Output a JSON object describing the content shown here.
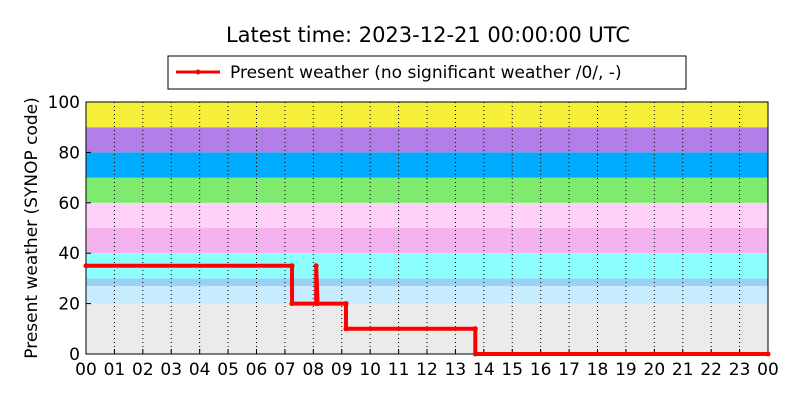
{
  "chart_data": {
    "type": "line",
    "title": "Latest time: 2023-12-21 00:00:00 UTC",
    "ylabel": "Present weather (SYNOP code)",
    "xlim": [
      0,
      24
    ],
    "ylim": [
      0,
      100
    ],
    "xticks": [
      {
        "value": 0,
        "label": "00"
      },
      {
        "value": 1,
        "label": "01"
      },
      {
        "value": 2,
        "label": "02"
      },
      {
        "value": 3,
        "label": "03"
      },
      {
        "value": 4,
        "label": "04"
      },
      {
        "value": 5,
        "label": "05"
      },
      {
        "value": 6,
        "label": "06"
      },
      {
        "value": 7,
        "label": "07"
      },
      {
        "value": 8,
        "label": "08"
      },
      {
        "value": 9,
        "label": "09"
      },
      {
        "value": 10,
        "label": "10"
      },
      {
        "value": 11,
        "label": "11"
      },
      {
        "value": 12,
        "label": "12"
      },
      {
        "value": 13,
        "label": "13"
      },
      {
        "value": 14,
        "label": "14"
      },
      {
        "value": 15,
        "label": "15"
      },
      {
        "value": 16,
        "label": "16"
      },
      {
        "value": 17,
        "label": "17"
      },
      {
        "value": 18,
        "label": "18"
      },
      {
        "value": 19,
        "label": "19"
      },
      {
        "value": 20,
        "label": "20"
      },
      {
        "value": 21,
        "label": "21"
      },
      {
        "value": 22,
        "label": "22"
      },
      {
        "value": 23,
        "label": "23"
      },
      {
        "value": 24,
        "label": "00"
      }
    ],
    "yticks": [
      0,
      20,
      40,
      60,
      80,
      100
    ],
    "grid": true,
    "legend": "top",
    "bands": [
      {
        "from": 0,
        "to": 20,
        "color": "#ebebeb"
      },
      {
        "from": 20,
        "to": 27,
        "color": "#c8ecff"
      },
      {
        "from": 27,
        "to": 30,
        "color": "#9ad0f4"
      },
      {
        "from": 30,
        "to": 40,
        "color": "#8cffff"
      },
      {
        "from": 40,
        "to": 50,
        "color": "#f4b2ee"
      },
      {
        "from": 50,
        "to": 60,
        "color": "#ffd0f8"
      },
      {
        "from": 60,
        "to": 70,
        "color": "#7eea6e"
      },
      {
        "from": 70,
        "to": 80,
        "color": "#00acff"
      },
      {
        "from": 80,
        "to": 90,
        "color": "#b27ee8"
      },
      {
        "from": 90,
        "to": 100,
        "color": "#f6f03a"
      }
    ],
    "series": [
      {
        "name": "Present weather (no significant weather /0/, -)",
        "color": "#ff0000",
        "x": [
          0,
          7.25,
          7.25,
          8.1,
          8.1,
          8.15,
          9.15,
          9.15,
          13.7,
          13.7,
          24
        ],
        "values": [
          35,
          35,
          20,
          20,
          35,
          20,
          20,
          10,
          10,
          0,
          0
        ]
      }
    ]
  }
}
